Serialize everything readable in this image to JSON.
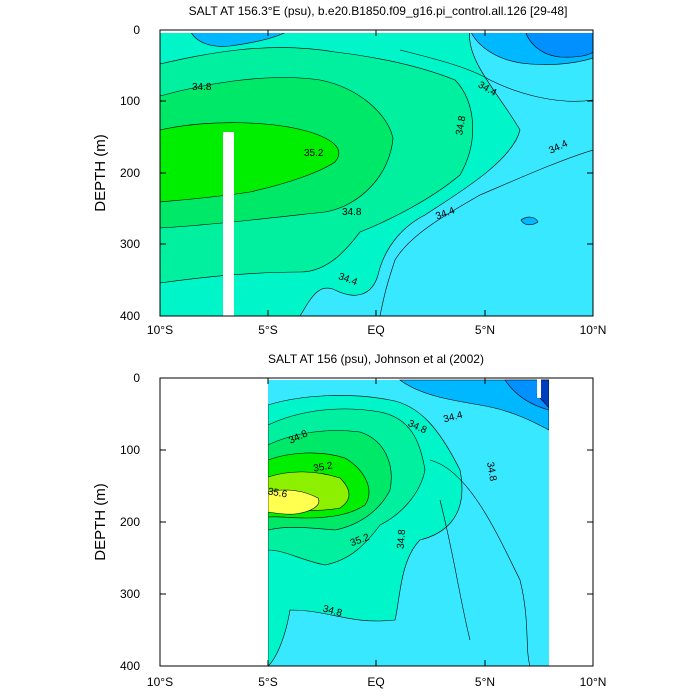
{
  "chart_data": [
    {
      "type": "contour",
      "title": "SALT AT 156.3°E (psu), b.e20.B1850.f09_g16.pi_control.all.126 [29-48]",
      "ylabel": "DEPTH (m)",
      "xlim": [
        -10,
        10
      ],
      "ylim": [
        400,
        0
      ],
      "x_ticks": [
        -10,
        -5,
        0,
        5,
        10
      ],
      "x_tick_labels": [
        "10°S",
        "5°S",
        "EQ",
        "5°N",
        "10°N"
      ],
      "y_ticks": [
        0,
        100,
        200,
        300,
        400
      ],
      "y_tick_labels": [
        "0",
        "100",
        "200",
        "300",
        "400"
      ],
      "levels": [
        34.0,
        34.2,
        34.4,
        34.6,
        34.8,
        35.0,
        35.2,
        35.4,
        35.6
      ],
      "level_colors": [
        "#0090ff",
        "#00b8ff",
        "#38e8ff",
        "#00f5c8",
        "#00f0a0",
        "#00e868",
        "#00ee00",
        "#8cf000",
        "#ffff50"
      ],
      "contour_labels": [
        {
          "text": "34.8",
          "x": -9.0,
          "y": 76
        },
        {
          "text": "34.8",
          "x": 1.0,
          "y": 135
        },
        {
          "text": "35.2",
          "x": -6.4,
          "y": 173
        },
        {
          "text": "34.8",
          "x": -6.0,
          "y": 252
        },
        {
          "text": "34.4",
          "x": 1.2,
          "y": 258
        },
        {
          "text": "34.4",
          "x": -6.5,
          "y": 346
        },
        {
          "text": "34.4",
          "x": 6.1,
          "y": 84
        },
        {
          "text": "34.4",
          "x": 3.9,
          "y": 138
        },
        {
          "text": "34.4",
          "x": 9.0,
          "y": 150
        }
      ],
      "missing_columns": [
        {
          "x": [
            -7.0,
            -6.8
          ],
          "y": [
            140,
            400
          ]
        }
      ]
    },
    {
      "type": "contour",
      "title": "SALT AT 156 (psu), Johnson et al (2002)",
      "ylabel": "DEPTH (m)",
      "xlim": [
        -10,
        10
      ],
      "ylim": [
        400,
        0
      ],
      "x_ticks": [
        -10,
        -5,
        0,
        5,
        10
      ],
      "x_tick_labels": [
        "10°S",
        "5°S",
        "EQ",
        "5°N",
        "10°N"
      ],
      "y_ticks": [
        0,
        100,
        200,
        300,
        400
      ],
      "y_tick_labels": [
        "0",
        "100",
        "200",
        "300",
        "400"
      ],
      "data_range_x": [
        -5,
        8
      ],
      "levels": [
        34.0,
        34.2,
        34.4,
        34.6,
        34.8,
        35.0,
        35.2,
        35.4,
        35.6
      ],
      "level_colors": [
        "#0090ff",
        "#00b8ff",
        "#38e8ff",
        "#00f5c8",
        "#00f0a0",
        "#00e868",
        "#00ee00",
        "#8cf000",
        "#ffff50"
      ],
      "contour_labels": [
        {
          "text": "34.4",
          "x": 2.9,
          "y": 50
        },
        {
          "text": "34.8",
          "x": -3.6,
          "y": 72
        },
        {
          "text": "34.8",
          "x": 0.6,
          "y": 66
        },
        {
          "text": "35.2",
          "x": -2.2,
          "y": 121
        },
        {
          "text": "35.6",
          "x": -4.6,
          "y": 157
        },
        {
          "text": "34.8",
          "x": 5.2,
          "y": 130
        },
        {
          "text": "35.2",
          "x": -0.6,
          "y": 221
        },
        {
          "text": "34.8",
          "x": 1.2,
          "y": 232
        },
        {
          "text": "34.8",
          "x": -1.9,
          "y": 336
        }
      ],
      "missing_columns": [
        {
          "x": [
            7.5,
            7.7
          ],
          "y": [
            0,
            30
          ]
        }
      ]
    }
  ]
}
